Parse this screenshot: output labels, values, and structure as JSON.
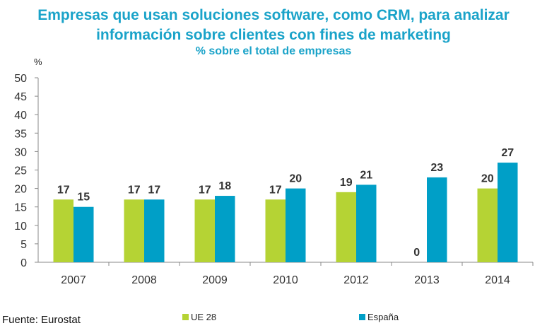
{
  "chart_data": {
    "type": "bar",
    "title": "Empresas que usan soluciones software, como CRM,  para analizar información sobre clientes con fines de marketing",
    "subtitle": "% sobre el total de empresas",
    "ylabel": "%",
    "xlabel": "",
    "ylim": [
      0,
      50
    ],
    "yticks": [
      0,
      5,
      10,
      15,
      20,
      25,
      30,
      35,
      40,
      45,
      50
    ],
    "categories": [
      "2007",
      "2008",
      "2009",
      "2010",
      "2012",
      "2013",
      "2014"
    ],
    "series": [
      {
        "name": "UE 28",
        "color": "#b5d334",
        "values": [
          17,
          17,
          17,
          17,
          19,
          0,
          20
        ]
      },
      {
        "name": "España",
        "color": "#009fc7",
        "values": [
          15,
          17,
          18,
          20,
          21,
          23,
          27
        ]
      }
    ],
    "grid": false,
    "legend": "bottom"
  },
  "source": "Fuente: Eurostat"
}
